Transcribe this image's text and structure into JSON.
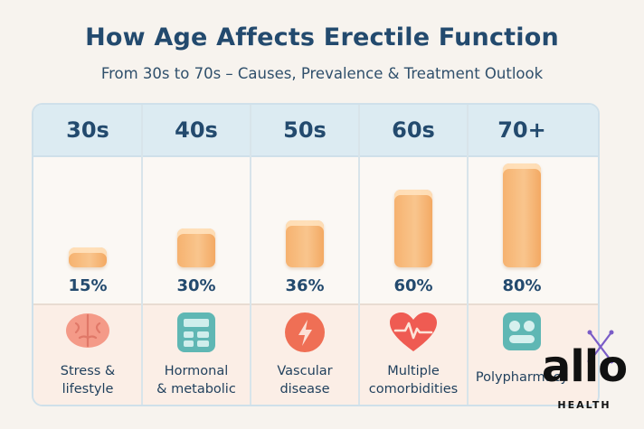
{
  "title": "How Age Affects Erectile Function",
  "subtitle": "From 30s to 70s – Causes, Prevalence & Treatment Outlook",
  "chart_data": {
    "type": "bar",
    "categories": [
      "30s",
      "40s",
      "50s",
      "60s",
      "70+"
    ],
    "values": [
      15,
      30,
      36,
      60,
      80
    ],
    "value_labels": [
      "15%",
      "30%",
      "36%",
      "60%",
      "80%"
    ],
    "causes": [
      [
        "Stress &",
        "lifestyle"
      ],
      [
        "Hormonal",
        "& metabolic"
      ],
      [
        "Vascular",
        "disease"
      ],
      [
        "Multiple",
        "comorbidities"
      ],
      [
        "Polypharmacy"
      ]
    ],
    "icons": [
      "brain-icon",
      "calculator-icon",
      "lightning-icon",
      "heartbeat-icon",
      "pills-icon"
    ],
    "bar_color": "#f6b26f"
  },
  "logo": {
    "brand": "allo",
    "sub": "HEALTH",
    "accent": "#7a5cc7"
  }
}
